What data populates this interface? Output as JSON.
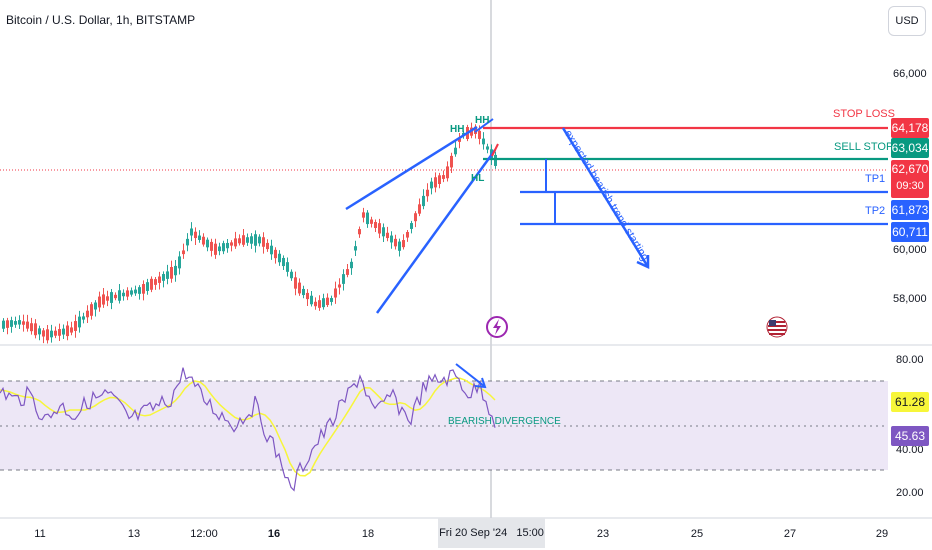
{
  "header": {
    "title": "Bitcoin / U.S. Dollar, 1h, BITSTAMP",
    "currency_label": "USD"
  },
  "price_axis": {
    "ticks": [
      "66,000",
      "60,000",
      "58,000"
    ]
  },
  "price_badges": {
    "stop_loss": "64,178",
    "sell_stop": "63,034",
    "current_price": "62,670",
    "countdown": "09:30",
    "tp1": "61,873",
    "tp2": "60,711"
  },
  "annotations": {
    "stop_loss": "STOP LOSS",
    "sell_stop": "SELL STOP",
    "tp1": "TP1",
    "tp2": "TP2",
    "hh1": "HH",
    "hh2": "HH",
    "hl": "HL",
    "trend_note": "expected bearish trend starting",
    "divergence": "BEARISH DIVERGENCE"
  },
  "rsi_axis": {
    "ticks": [
      "80.00",
      "40.00",
      "20.00"
    ],
    "rsi_value": "61.28",
    "rsi_ma_value": "45.63"
  },
  "time_axis": {
    "labels": [
      "11",
      "13",
      "12:00",
      "16",
      "18",
      "23",
      "25",
      "27",
      "29"
    ],
    "selected_date": "Fri 20 Sep '24",
    "selected_time": "15:00"
  },
  "colors": {
    "bull": "#26a69a",
    "bear": "#ef5350",
    "drawing": "#2962ff",
    "stop_loss": "#f23645",
    "sell_stop": "#089981",
    "rsi_line": "#7e57c2",
    "rsi_ma": "#f7f63a",
    "rsi_band": "#ede7f6"
  },
  "icons": [
    "lightning-icon",
    "us-flag-icon"
  ]
}
